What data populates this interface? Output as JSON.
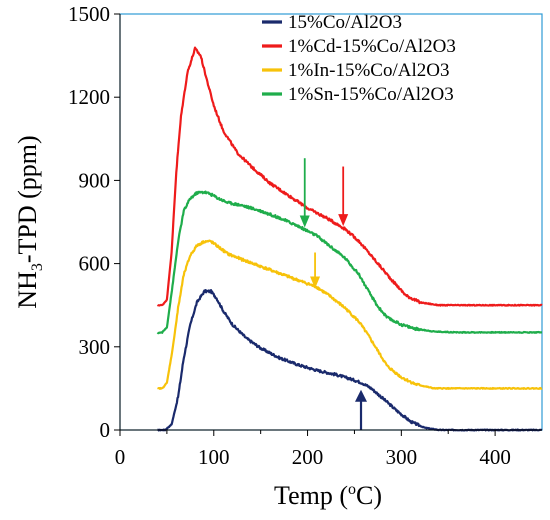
{
  "chart_data": {
    "type": "line",
    "xlabel": {
      "prefix": "Temp (",
      "sup": "o",
      "suffix": "C)"
    },
    "ylabel": {
      "prefix": "NH",
      "sub": "3",
      "suffix": "-TPD (ppm)"
    },
    "xlim": [
      0,
      450
    ],
    "ylim": [
      0,
      1500
    ],
    "x_ticks": [
      "0",
      "100",
      "200",
      "300",
      "400"
    ],
    "x_tick_values": [
      0,
      100,
      200,
      300,
      400
    ],
    "y_ticks": [
      "0",
      "300",
      "600",
      "900",
      "1200",
      "1500"
    ],
    "y_tick_values": [
      0,
      300,
      600,
      900,
      1200,
      1500
    ],
    "grid": false,
    "legend_position": "top-right",
    "series": [
      {
        "name": "15%Co/Al2O3",
        "color": "#1a2a6c",
        "x": [
          40,
          48,
          55,
          62,
          68,
          75,
          82,
          90,
          97,
          103,
          110,
          120,
          135,
          150,
          170,
          190,
          210,
          230,
          245,
          258,
          268,
          280,
          295,
          310,
          325,
          340,
          360,
          400,
          450
        ],
        "y": [
          0,
          0,
          20,
          120,
          260,
          380,
          460,
          500,
          500,
          475,
          430,
          380,
          330,
          295,
          260,
          235,
          215,
          200,
          185,
          170,
          150,
          115,
          70,
          30,
          8,
          0,
          0,
          0,
          0
        ]
      },
      {
        "name": "1%Cd-15%Co/Al2O3",
        "color": "#ee1b1b",
        "x": [
          40,
          45,
          50,
          55,
          60,
          65,
          72,
          80,
          86,
          92,
          100,
          110,
          125,
          140,
          160,
          180,
          200,
          220,
          240,
          255,
          265,
          275,
          290,
          305,
          320,
          340,
          370,
          410,
          450
        ],
        "y": [
          450,
          450,
          470,
          640,
          930,
          1130,
          1290,
          1375,
          1350,
          1270,
          1170,
          1080,
          1000,
          950,
          890,
          845,
          800,
          765,
          725,
          680,
          640,
          600,
          540,
          485,
          460,
          450,
          450,
          450,
          450
        ]
      },
      {
        "name": "1%In-15%Co/Al2O3",
        "color": "#f7c20a",
        "x": [
          40,
          45,
          50,
          56,
          62,
          68,
          75,
          82,
          90,
          97,
          105,
          115,
          130,
          150,
          170,
          190,
          210,
          225,
          240,
          255,
          265,
          275,
          285,
          300,
          315,
          335,
          360,
          400,
          450
        ],
        "y": [
          150,
          150,
          170,
          290,
          440,
          560,
          630,
          665,
          680,
          680,
          660,
          635,
          615,
          590,
          565,
          540,
          515,
          480,
          440,
          390,
          340,
          285,
          230,
          190,
          165,
          150,
          150,
          150,
          150
        ]
      },
      {
        "name": "1%Sn-15%Co/Al2O3",
        "color": "#1fad4b",
        "x": [
          40,
          45,
          50,
          56,
          62,
          68,
          75,
          82,
          90,
          97,
          105,
          115,
          130,
          150,
          170,
          190,
          210,
          225,
          240,
          255,
          265,
          275,
          285,
          300,
          315,
          335,
          360,
          400,
          450
        ],
        "y": [
          350,
          352,
          370,
          520,
          680,
          790,
          835,
          855,
          858,
          850,
          835,
          820,
          810,
          790,
          765,
          735,
          700,
          660,
          620,
          560,
          500,
          445,
          405,
          380,
          365,
          355,
          352,
          352,
          352
        ]
      }
    ],
    "annotations": [
      {
        "type": "arrow-down",
        "color": "#ee1b1b",
        "x": 238,
        "y_top": 950,
        "y_tip": 735
      },
      {
        "type": "arrow-down",
        "color": "#f7c20a",
        "x": 208,
        "y_top": 640,
        "y_tip": 510
      },
      {
        "type": "arrow-down",
        "color": "#1fad4b",
        "x": 197,
        "y_top": 980,
        "y_tip": 730
      },
      {
        "type": "arrow-up",
        "color": "#1a2a6c",
        "x": 257,
        "y_bottom": 0,
        "y_tip": 145
      }
    ]
  }
}
